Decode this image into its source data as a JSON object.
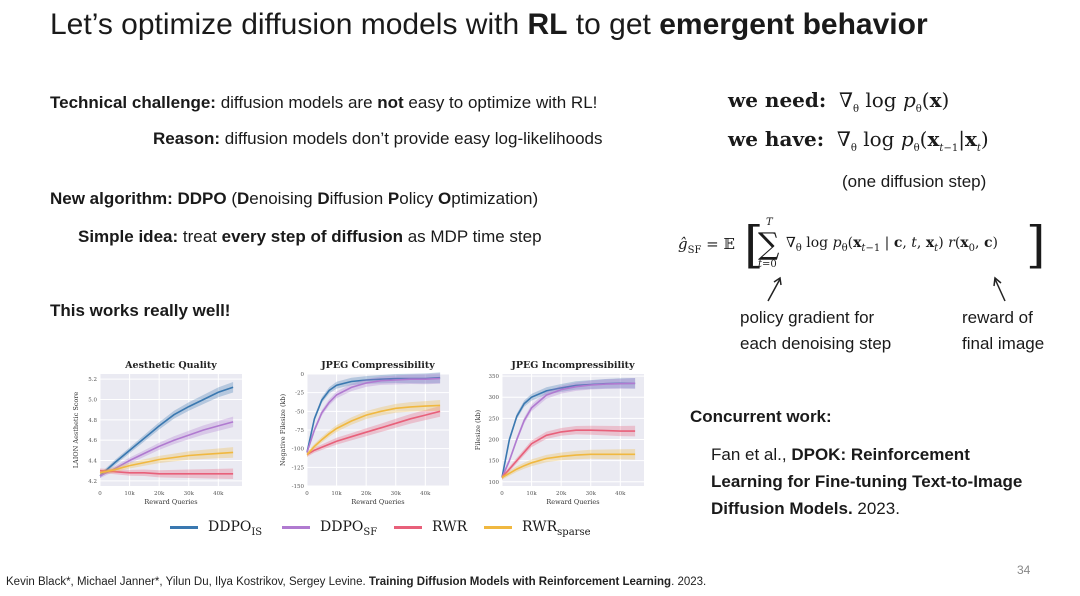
{
  "slide": {
    "title_pre": "Let’s optimize diffusion models with ",
    "title_b1": "RL",
    "title_mid": " to get ",
    "title_b2": "emergent behavior",
    "page_number": "34"
  },
  "left": {
    "challenge_label": "Technical challenge:",
    "challenge_a": " diffusion models are ",
    "challenge_not": "not",
    "challenge_b": " easy to optimize with RL!",
    "reason_label": "Reason:",
    "reason_text": " diffusion models don’t provide easy log-likelihoods",
    "algo_label": "New algorithm: DDPO",
    "algo_open": " (",
    "algo_D1": "D",
    "algo_enoising": "enoising ",
    "algo_D2": "D",
    "algo_iffusion": "iffusion ",
    "algo_P": "P",
    "algo_olicy": "olicy ",
    "algo_O": "O",
    "algo_ptimization": "ptimization)",
    "idea_label": "Simple idea:",
    "idea_a": " treat ",
    "idea_bold": "every step of diffusion",
    "idea_b": " as MDP time step",
    "works": "This works really well!"
  },
  "right": {
    "need_label": "we need:",
    "have_label": "we have:",
    "one_step": "(one diffusion step)",
    "annot_pg_1": "policy gradient for",
    "annot_pg_2": "each denoising step",
    "annot_reward_1": "reward of",
    "annot_reward_2": "final image",
    "concurrent_label": "Concurrent work:",
    "concurrent_authors": "Fan et al., ",
    "concurrent_title_1": "DPOK: Reinforcement",
    "concurrent_title_2": "Learning for Fine-tuning Text-to-Image",
    "concurrent_title_3": "Diffusion Models.",
    "concurrent_year": " 2023."
  },
  "footer": {
    "authors": "Kevin Black*, Michael Janner*, Yilun Du, Ilya Kostrikov, Sergey Levine. ",
    "paper": "Training Diffusion Models with Reinforcement Learning",
    "year": ". 2023."
  },
  "legend": [
    {
      "name": "DDPO",
      "sub": "IS",
      "color": "#3a78b0"
    },
    {
      "name": "DDPO",
      "sub": "SF",
      "color": "#b07ad0"
    },
    {
      "name": "RWR",
      "sub": "",
      "color": "#e8607a"
    },
    {
      "name": "RWR",
      "sub": "sparse",
      "color": "#f0b840"
    }
  ],
  "chart_data": [
    {
      "type": "line",
      "title": "Aesthetic Quality",
      "xlabel": "Reward Queries",
      "ylabel": "LAION Aesthetic Score",
      "xlim": [
        0,
        48000
      ],
      "ylim": [
        4.15,
        5.25
      ],
      "xticks": [
        "0",
        "10k",
        "20k",
        "30k",
        "40k"
      ],
      "yticks": [
        "4.2",
        "4.4",
        "4.6",
        "4.8",
        "5.0",
        "5.2"
      ],
      "x": [
        0,
        5000,
        10000,
        15000,
        20000,
        25000,
        30000,
        35000,
        40000,
        45000
      ],
      "series": [
        {
          "name": "DDPO_IS",
          "values": [
            4.25,
            4.38,
            4.5,
            4.62,
            4.74,
            4.85,
            4.93,
            5.0,
            5.07,
            5.12
          ]
        },
        {
          "name": "DDPO_SF",
          "values": [
            4.25,
            4.32,
            4.4,
            4.47,
            4.54,
            4.6,
            4.65,
            4.7,
            4.74,
            4.78
          ]
        },
        {
          "name": "RWR",
          "values": [
            4.3,
            4.29,
            4.28,
            4.28,
            4.27,
            4.27,
            4.27,
            4.27,
            4.27,
            4.27
          ]
        },
        {
          "name": "RWR_sparse",
          "values": [
            4.28,
            4.31,
            4.35,
            4.38,
            4.41,
            4.43,
            4.45,
            4.46,
            4.47,
            4.48
          ]
        }
      ]
    },
    {
      "type": "line",
      "title": "JPEG Compressibility",
      "xlabel": "Reward Queries",
      "ylabel": "Negative Filesize (kb)",
      "xlim": [
        0,
        48000
      ],
      "ylim": [
        -150,
        0
      ],
      "xticks": [
        "0",
        "10k",
        "20k",
        "30k",
        "40k"
      ],
      "yticks": [
        "0",
        "-25",
        "-50",
        "-75",
        "-100",
        "-125",
        "-150"
      ],
      "x": [
        0,
        2500,
        5000,
        7500,
        10000,
        15000,
        20000,
        25000,
        30000,
        35000,
        40000,
        45000
      ],
      "series": [
        {
          "name": "DDPO_IS",
          "values": [
            -105,
            -60,
            -35,
            -22,
            -15,
            -10,
            -8,
            -7,
            -6,
            -6,
            -6,
            -5
          ]
        },
        {
          "name": "DDPO_SF",
          "values": [
            -105,
            -75,
            -52,
            -38,
            -28,
            -18,
            -12,
            -9,
            -8,
            -7,
            -7,
            -6
          ]
        },
        {
          "name": "RWR",
          "values": [
            -108,
            -102,
            -98,
            -94,
            -90,
            -84,
            -78,
            -72,
            -66,
            -60,
            -55,
            -50
          ]
        },
        {
          "name": "RWR_sparse",
          "values": [
            -108,
            -97,
            -88,
            -80,
            -73,
            -63,
            -55,
            -50,
            -46,
            -44,
            -43,
            -42
          ]
        }
      ]
    },
    {
      "type": "line",
      "title": "JPEG Incompressibility",
      "xlabel": "Reward Queries",
      "ylabel": "Filesize (kb)",
      "xlim": [
        0,
        48000
      ],
      "ylim": [
        90,
        355
      ],
      "xticks": [
        "0",
        "10k",
        "20k",
        "30k",
        "40k"
      ],
      "yticks": [
        "100",
        "150",
        "200",
        "250",
        "300",
        "350"
      ],
      "x": [
        0,
        2500,
        5000,
        7500,
        10000,
        15000,
        20000,
        25000,
        30000,
        35000,
        40000,
        45000
      ],
      "series": [
        {
          "name": "DDPO_IS",
          "values": [
            110,
            200,
            255,
            285,
            300,
            315,
            322,
            328,
            330,
            332,
            333,
            333
          ]
        },
        {
          "name": "DDPO_SF",
          "values": [
            110,
            150,
            200,
            245,
            275,
            305,
            318,
            325,
            329,
            331,
            332,
            333
          ]
        },
        {
          "name": "RWR",
          "values": [
            110,
            130,
            150,
            170,
            190,
            210,
            218,
            222,
            222,
            221,
            220,
            220
          ]
        },
        {
          "name": "RWR_sparse",
          "values": [
            110,
            120,
            130,
            138,
            145,
            155,
            160,
            163,
            165,
            165,
            165,
            165
          ]
        }
      ]
    }
  ]
}
